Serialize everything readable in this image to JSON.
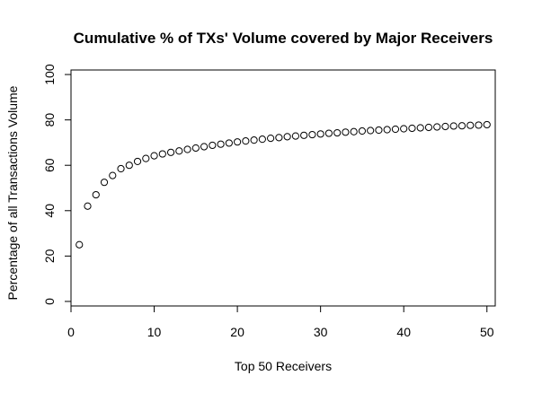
{
  "chart_data": {
    "type": "scatter",
    "title": "Cumulative % of TXs' Volume covered by Major Receivers",
    "xlabel": "Top 50 Receivers",
    "ylabel": "Percentage of all Transactions Volume",
    "xlim": [
      0,
      51
    ],
    "ylim": [
      -2,
      102
    ],
    "x_ticks": [
      0,
      10,
      20,
      30,
      40,
      50
    ],
    "y_ticks": [
      0,
      20,
      40,
      60,
      80,
      100
    ],
    "grid": false,
    "marker": "open-circle",
    "color": "#000000",
    "x": [
      1,
      2,
      3,
      4,
      5,
      6,
      7,
      8,
      9,
      10,
      11,
      12,
      13,
      14,
      15,
      16,
      17,
      18,
      19,
      20,
      21,
      22,
      23,
      24,
      25,
      26,
      27,
      28,
      29,
      30,
      31,
      32,
      33,
      34,
      35,
      36,
      37,
      38,
      39,
      40,
      41,
      42,
      43,
      44,
      45,
      46,
      47,
      48,
      49,
      50
    ],
    "y": [
      25,
      42,
      47,
      52.5,
      55.5,
      58.5,
      60,
      61.7,
      63,
      64.2,
      65,
      65.7,
      66.3,
      67,
      67.6,
      68.2,
      68.8,
      69.3,
      69.8,
      70.3,
      70.7,
      71.1,
      71.5,
      71.9,
      72.2,
      72.6,
      72.9,
      73.2,
      73.5,
      73.8,
      74.1,
      74.3,
      74.6,
      74.8,
      75.1,
      75.3,
      75.5,
      75.7,
      75.9,
      76.1,
      76.3,
      76.5,
      76.7,
      76.9,
      77.1,
      77.3,
      77.4,
      77.6,
      77.7,
      77.9
    ]
  }
}
